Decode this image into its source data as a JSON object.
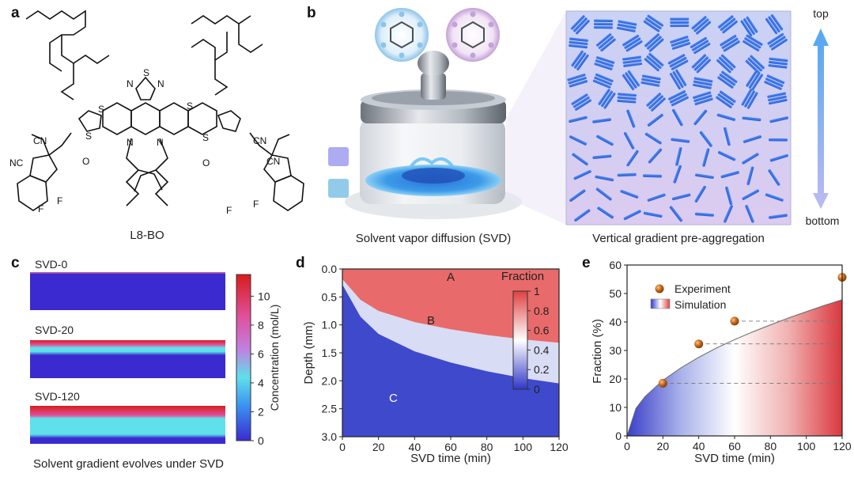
{
  "panel_labels": {
    "a": "a",
    "b": "b",
    "c": "c",
    "d": "d",
    "e": "e"
  },
  "panel_a": {
    "molecule_name": "L8-BO",
    "atoms": {
      "S": "S",
      "N": "N",
      "CN": "CN",
      "NC": "NC",
      "O": "O",
      "F": "F"
    }
  },
  "panel_b": {
    "caption_left": "Solvent vapor diffusion (SVD)",
    "caption_right": "Vertical gradient pre-aggregation",
    "arrow_top": "top",
    "arrow_bottom": "bottom"
  },
  "panel_c": {
    "rows": [
      {
        "label": "SVD-0",
        "red_frac": 0.02,
        "cyan_frac": 0.0
      },
      {
        "label": "SVD-20",
        "red_frac": 0.12,
        "cyan_frac": 0.3
      },
      {
        "label": "SVD-120",
        "red_frac": 0.25,
        "cyan_frac": 0.75
      }
    ],
    "caption": "Solvent gradient evolves under SVD",
    "colorbar": {
      "label": "Concentration (mol/L)",
      "ticks": [
        "0",
        "2",
        "4",
        "6",
        "8",
        "10"
      ],
      "min": 0,
      "max": 11.5
    }
  },
  "chart_data": [
    {
      "type": "heatmap",
      "panel": "d",
      "xlabel": "SVD time (min)",
      "ylabel": "Depth (mm)",
      "xlim": [
        0,
        120
      ],
      "ylim": [
        3.0,
        0.0
      ],
      "xticks": [
        "0",
        "20",
        "40",
        "60",
        "80",
        "100",
        "120"
      ],
      "yticks": [
        "0.0",
        "0.5",
        "1.0",
        "1.5",
        "2.0",
        "2.5",
        "3.0"
      ],
      "region_labels": [
        "A",
        "B",
        "C"
      ],
      "colorbar": {
        "title": "Fraction",
        "ticks": [
          "0",
          "0.2",
          "0.4",
          "0.6",
          "0.8",
          "1"
        ],
        "min": 0,
        "max": 1
      },
      "front_depth": {
        "x": [
          0,
          10,
          20,
          40,
          60,
          80,
          100,
          120
        ],
        "y": [
          0.18,
          0.55,
          0.75,
          0.95,
          1.08,
          1.18,
          1.26,
          1.32
        ]
      }
    },
    {
      "type": "scatter",
      "panel": "e",
      "xlabel": "SVD time (min)",
      "ylabel": "Fraction (%)",
      "xlim": [
        0,
        120
      ],
      "ylim": [
        0,
        60
      ],
      "xticks": [
        "0",
        "20",
        "40",
        "60",
        "80",
        "100",
        "120"
      ],
      "yticks": [
        "0",
        "10",
        "20",
        "30",
        "40",
        "50",
        "60"
      ],
      "legend": [
        "Experiment",
        "Simulation"
      ],
      "experiment": {
        "x": [
          20,
          40,
          60,
          120
        ],
        "y": [
          18.5,
          32.3,
          40.3,
          55.7
        ]
      },
      "simulation": {
        "x": [
          0,
          5,
          10,
          20,
          30,
          40,
          50,
          60,
          70,
          80,
          90,
          100,
          110,
          120
        ],
        "y": [
          0,
          9.7,
          13.8,
          19.5,
          23.9,
          27.6,
          30.9,
          33.8,
          36.5,
          39.0,
          41.4,
          43.6,
          45.8,
          47.8
        ]
      }
    }
  ]
}
